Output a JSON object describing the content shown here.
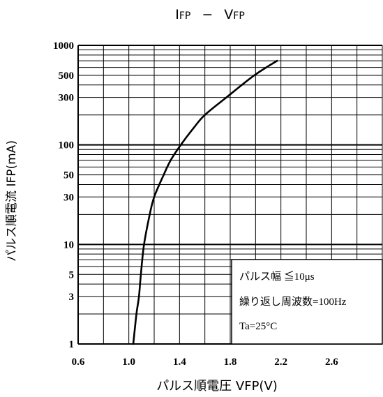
{
  "chart_data": {
    "type": "line",
    "title": {
      "quantity_1": "I",
      "sub_1": "FP",
      "separator": "−",
      "quantity_2": "V",
      "sub_2": "FP"
    },
    "xlabel": "パルス順電圧 VFP(V)",
    "ylabel": "パルス順電流 IFP(mA)",
    "xlim": [
      0.6,
      3.0
    ],
    "ylim": [
      1,
      1000
    ],
    "yscale": "log",
    "grid": true,
    "xticks": [
      "0.6",
      "1.0",
      "1.4",
      "1.8",
      "2.2",
      "2.6"
    ],
    "yticks": [
      "1",
      "3",
      "5",
      "10",
      "30",
      "50",
      "100",
      "300",
      "500",
      "1000"
    ],
    "series": [
      {
        "color": "#000000",
        "x": [
          1.035,
          1.06,
          1.08,
          1.095,
          1.12,
          1.165,
          1.2,
          1.275,
          1.33,
          1.41,
          1.515,
          1.6,
          1.77,
          1.99,
          2.17
        ],
        "y": [
          1,
          2,
          3,
          5,
          10,
          20,
          30,
          50,
          70,
          100,
          150,
          200,
          300,
          500,
          700
        ]
      }
    ],
    "annotation": {
      "lines": [
        "パルス幅 ≦10μs",
        "繰り返し周波数=100Hz",
        "Ta=25°C"
      ]
    }
  }
}
